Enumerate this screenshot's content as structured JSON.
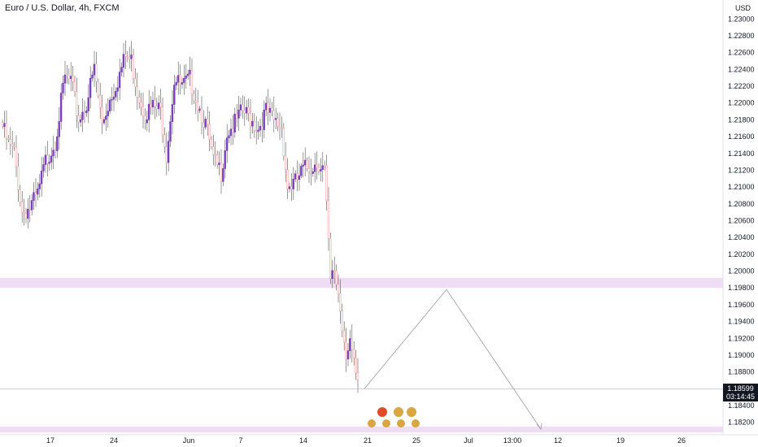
{
  "header": {
    "title": "Euro / U.S. Dollar, 4h, FXCM",
    "currency": "USD"
  },
  "last_price": {
    "value": "1.18599",
    "countdown": "03:14:45",
    "bg_color": "#131722"
  },
  "colors": {
    "bull": "#7b3fbf",
    "bear": "#f3a6a6",
    "wick": "#555555",
    "zone": "#efdcf5",
    "projection": "#9a9a9a",
    "axis_border": "#e0e3eb",
    "grid": "#f3f4f7"
  },
  "chart_data": {
    "type": "candlestick",
    "title": "Euro / U.S. Dollar, 4h, FXCM",
    "yunit": "USD",
    "ylim": [
      1.181,
      1.231
    ],
    "yticks": [
      "1.23000",
      "1.22800",
      "1.22600",
      "1.22400",
      "1.22200",
      "1.22000",
      "1.21800",
      "1.21600",
      "1.21400",
      "1.21200",
      "1.21000",
      "1.20800",
      "1.20600",
      "1.20400",
      "1.20200",
      "1.20000",
      "1.19800",
      "1.19600",
      "1.19400",
      "1.19200",
      "1.19000",
      "1.18800",
      "1.18400",
      "1.18200"
    ],
    "xticks": [
      "17",
      "24",
      "Jun",
      "7",
      "14",
      "21",
      "25",
      "Jul",
      "13:00",
      "12",
      "19",
      "26"
    ],
    "bars_4h_count": 183,
    "close_path": [
      {
        "bar": 0,
        "price": 1.2172
      },
      {
        "bar": 3,
        "price": 1.215
      },
      {
        "bar": 6,
        "price": 1.214
      },
      {
        "bar": 10,
        "price": 1.207
      },
      {
        "bar": 14,
        "price": 1.2075
      },
      {
        "bar": 18,
        "price": 1.209
      },
      {
        "bar": 22,
        "price": 1.213
      },
      {
        "bar": 27,
        "price": 1.2155
      },
      {
        "bar": 32,
        "price": 1.223
      },
      {
        "bar": 35,
        "price": 1.2225
      },
      {
        "bar": 39,
        "price": 1.218
      },
      {
        "bar": 43,
        "price": 1.22
      },
      {
        "bar": 47,
        "price": 1.224
      },
      {
        "bar": 51,
        "price": 1.2175
      },
      {
        "bar": 55,
        "price": 1.2205
      },
      {
        "bar": 59,
        "price": 1.2228
      },
      {
        "bar": 63,
        "price": 1.2255
      },
      {
        "bar": 66,
        "price": 1.225
      },
      {
        "bar": 69,
        "price": 1.2215
      },
      {
        "bar": 73,
        "price": 1.2188
      },
      {
        "bar": 77,
        "price": 1.2195
      },
      {
        "bar": 81,
        "price": 1.219
      },
      {
        "bar": 84,
        "price": 1.214
      },
      {
        "bar": 88,
        "price": 1.2228
      },
      {
        "bar": 92,
        "price": 1.2218
      },
      {
        "bar": 96,
        "price": 1.2228
      },
      {
        "bar": 100,
        "price": 1.22
      },
      {
        "bar": 104,
        "price": 1.2175
      },
      {
        "bar": 108,
        "price": 1.213
      },
      {
        "bar": 112,
        "price": 1.2118
      },
      {
        "bar": 115,
        "price": 1.2165
      },
      {
        "bar": 119,
        "price": 1.2175
      },
      {
        "bar": 123,
        "price": 1.219
      },
      {
        "bar": 127,
        "price": 1.2182
      },
      {
        "bar": 131,
        "price": 1.217
      },
      {
        "bar": 135,
        "price": 1.219
      },
      {
        "bar": 139,
        "price": 1.2178
      },
      {
        "bar": 143,
        "price": 1.2172
      },
      {
        "bar": 146,
        "price": 1.21
      },
      {
        "bar": 150,
        "price": 1.2105
      },
      {
        "bar": 154,
        "price": 1.212
      },
      {
        "bar": 158,
        "price": 1.2125
      },
      {
        "bar": 162,
        "price": 1.213
      },
      {
        "bar": 165,
        "price": 1.212
      },
      {
        "bar": 168,
        "price": 1.1985
      },
      {
        "bar": 170,
        "price": 1.2
      },
      {
        "bar": 172,
        "price": 1.1975
      },
      {
        "bar": 174,
        "price": 1.1935
      },
      {
        "bar": 176,
        "price": 1.1905
      },
      {
        "bar": 178,
        "price": 1.192
      },
      {
        "bar": 180,
        "price": 1.1885
      },
      {
        "bar": 182,
        "price": 1.1862
      }
    ],
    "zones": [
      {
        "from": 1.198,
        "to": 1.1992
      },
      {
        "from": 1.1808,
        "to": 1.1815
      }
    ],
    "projection": [
      {
        "point": "start",
        "price": 1.186
      },
      {
        "point": "peak",
        "price": 1.1978
      },
      {
        "point": "end",
        "price": 1.1812
      }
    ],
    "current_price": 1.18599,
    "grid": false
  }
}
